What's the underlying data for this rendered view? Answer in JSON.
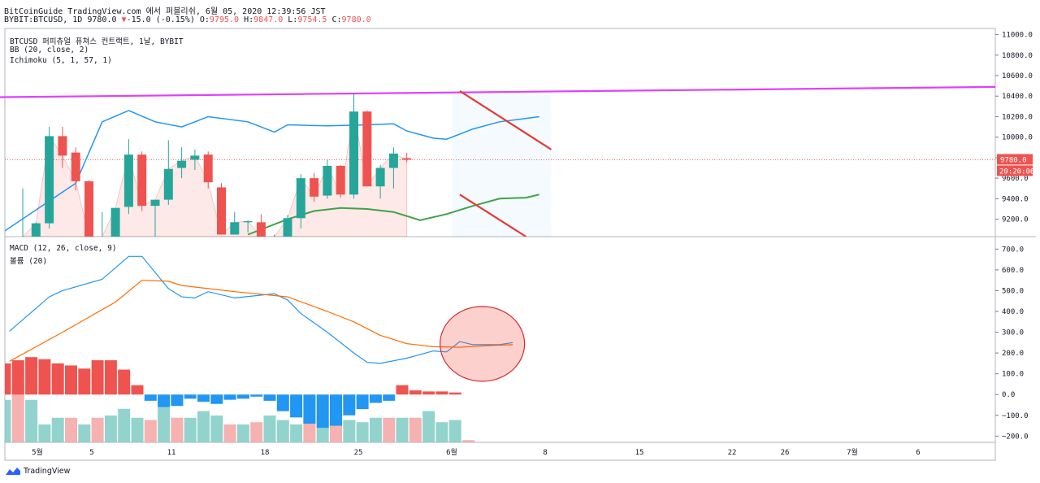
{
  "header": {
    "line1": "BitCoinGuide TradingView.com 에서 퍼블리쉬, 6월 05, 2020 12:39:56 JST",
    "symbol": "BYBIT:BTCUSD, 1D",
    "last": "9780.0",
    "change_arrow": "▼",
    "change": "-15.0 (-0.15%)",
    "o_label": "O:",
    "o": "9795.0",
    "h_label": "H:",
    "h": "9847.0",
    "l_label": "L:",
    "l": "9754.5",
    "c_label": "C:",
    "c": "9780.0"
  },
  "pane_labels": {
    "title": "BTCUSD 퍼피츄얼 퓨쳐스 컨트랙트, 1날, BYBIT",
    "bb": "BB (20, close, 2)",
    "ichimoku": "Ichimoku (5, 1, 57, 1)",
    "macd": "MACD (12, 26, close, 9)",
    "volume": "볼륨 (20)"
  },
  "brand": "TradingView",
  "price_tag": "9780.0",
  "time_tag": "20:20:06",
  "chart_data": [
    {
      "type": "candlestick",
      "pane": "price",
      "ylim": [
        9030,
        11060
      ],
      "yticks": [
        "9200.0",
        "9400.0",
        "9600.0",
        "9800.0",
        "10000.0",
        "10200.0",
        "10400.0",
        "10600.0",
        "10800.0",
        "11000.0"
      ],
      "x_ticks": [
        "5월",
        "5",
        "11",
        "18",
        "25",
        "6월",
        "8",
        "15",
        "22",
        "26",
        "7월",
        "6"
      ],
      "candles": [
        {
          "o": 9030,
          "h": 9500,
          "l": 9030,
          "c": 9030
        },
        {
          "o": 9030,
          "h": 9170,
          "l": 9030,
          "c": 9160
        },
        {
          "o": 9160,
          "h": 10100,
          "l": 9110,
          "c": 10010
        },
        {
          "o": 10010,
          "h": 10100,
          "l": 9700,
          "c": 9820
        },
        {
          "o": 9850,
          "h": 9900,
          "l": 9480,
          "c": 9570
        },
        {
          "o": 9570,
          "h": 9580,
          "l": 9030,
          "c": 9030
        },
        {
          "o": 9030,
          "h": 9270,
          "l": 9030,
          "c": 9030
        },
        {
          "o": 9030,
          "h": 9300,
          "l": 9030,
          "c": 9310
        },
        {
          "o": 9320,
          "h": 9980,
          "l": 9250,
          "c": 9830
        },
        {
          "o": 9830,
          "h": 9860,
          "l": 9280,
          "c": 9330
        },
        {
          "o": 9330,
          "h": 9370,
          "l": 9030,
          "c": 9390
        },
        {
          "o": 9390,
          "h": 9970,
          "l": 9340,
          "c": 9690
        },
        {
          "o": 9700,
          "h": 9900,
          "l": 9600,
          "c": 9770
        },
        {
          "o": 9780,
          "h": 9880,
          "l": 9680,
          "c": 9820
        },
        {
          "o": 9830,
          "h": 9860,
          "l": 9500,
          "c": 9560
        },
        {
          "o": 9510,
          "h": 9550,
          "l": 9050,
          "c": 9050
        },
        {
          "o": 9050,
          "h": 9270,
          "l": 9050,
          "c": 9170
        },
        {
          "o": 9170,
          "h": 9190,
          "l": 9070,
          "c": 9180
        },
        {
          "o": 9170,
          "h": 9250,
          "l": 9030,
          "c": 9030
        },
        {
          "o": 9030,
          "h": 9050,
          "l": 9030,
          "c": 9030
        },
        {
          "o": 9030,
          "h": 9240,
          "l": 9030,
          "c": 9210
        },
        {
          "o": 9210,
          "h": 9640,
          "l": 9110,
          "c": 9600
        },
        {
          "o": 9600,
          "h": 9650,
          "l": 9370,
          "c": 9420
        },
        {
          "o": 9430,
          "h": 9780,
          "l": 9400,
          "c": 9720
        },
        {
          "o": 9720,
          "h": 9730,
          "l": 9410,
          "c": 9440
        },
        {
          "o": 9440,
          "h": 10430,
          "l": 9400,
          "c": 10250
        },
        {
          "o": 10250,
          "h": 10260,
          "l": 9520,
          "c": 9520
        },
        {
          "o": 9520,
          "h": 9730,
          "l": 9400,
          "c": 9700
        },
        {
          "o": 9700,
          "h": 9900,
          "l": 9500,
          "c": 9840
        },
        {
          "o": 9795,
          "h": 9847,
          "l": 9754.5,
          "c": 9780
        }
      ],
      "bb_upper": [
        [
          -2,
          9030
        ],
        [
          4,
          9550
        ],
        [
          6,
          10150
        ],
        [
          8,
          10260
        ],
        [
          10,
          10150
        ],
        [
          12,
          10100
        ],
        [
          14,
          10200
        ],
        [
          17,
          10150
        ],
        [
          19,
          10050
        ],
        [
          20,
          10120
        ],
        [
          23,
          10110
        ],
        [
          26,
          10120
        ],
        [
          28,
          10130
        ],
        [
          29,
          10060
        ],
        [
          31,
          9990
        ],
        [
          32,
          9980
        ],
        [
          34,
          10080
        ],
        [
          36,
          10150
        ],
        [
          39,
          10200
        ]
      ],
      "ichimoku_base": [
        [
          17,
          9050
        ],
        [
          20,
          9200
        ],
        [
          22,
          9280
        ],
        [
          24,
          9310
        ],
        [
          26,
          9300
        ],
        [
          28,
          9270
        ],
        [
          30,
          9190
        ],
        [
          32,
          9250
        ],
        [
          34,
          9330
        ],
        [
          36,
          9400
        ],
        [
          38,
          9410
        ],
        [
          39,
          9440
        ]
      ],
      "line_magenta": {
        "from": [
          0,
          10390
        ],
        "to": [
          1280,
          10490
        ]
      },
      "channel_upper": {
        "from": [
          33,
          10450
        ],
        "to": [
          39.9,
          9880
        ]
      },
      "channel_lower": {
        "from": [
          33,
          9440
        ],
        "to": [
          38,
          9030
        ]
      },
      "current_price": 9780
    },
    {
      "type": "line",
      "pane": "macd",
      "ylim": [
        -230,
        760
      ],
      "yticks": [
        "700.0",
        "600.0",
        "500.0",
        "400.0",
        "300.0",
        "200.0",
        "100.0",
        "0.0",
        "-100.0",
        "-200.0"
      ],
      "macd": [
        [
          0,
          305
        ],
        [
          3,
          470
        ],
        [
          4,
          500
        ],
        [
          7,
          555
        ],
        [
          9,
          665
        ],
        [
          10,
          665
        ],
        [
          12,
          510
        ],
        [
          13,
          470
        ],
        [
          14,
          465
        ],
        [
          15,
          495
        ],
        [
          17,
          465
        ],
        [
          20,
          485
        ],
        [
          21,
          455
        ],
        [
          22,
          390
        ],
        [
          24,
          300
        ],
        [
          26,
          200
        ],
        [
          27,
          155
        ],
        [
          28,
          150
        ],
        [
          30,
          175
        ],
        [
          32,
          210
        ],
        [
          33,
          205
        ],
        [
          34,
          255
        ],
        [
          35,
          240
        ],
        [
          37,
          240
        ],
        [
          38,
          250
        ]
      ],
      "signal": [
        [
          0,
          160
        ],
        [
          4,
          300
        ],
        [
          8,
          445
        ],
        [
          10,
          550
        ],
        [
          12,
          545
        ],
        [
          13,
          525
        ],
        [
          17,
          495
        ],
        [
          21,
          470
        ],
        [
          24,
          400
        ],
        [
          26,
          350
        ],
        [
          28,
          285
        ],
        [
          30,
          245
        ],
        [
          32,
          230
        ],
        [
          34,
          228
        ],
        [
          36,
          235
        ],
        [
          38,
          240
        ]
      ],
      "histogram": [
        150,
        165,
        180,
        170,
        150,
        140,
        125,
        165,
        165,
        120,
        45,
        -30,
        -60,
        -55,
        -20,
        -35,
        -45,
        -25,
        -20,
        -10,
        -30,
        -80,
        -110,
        -140,
        -160,
        -150,
        -100,
        -70,
        -40,
        -30,
        45,
        20,
        15,
        15,
        10
      ],
      "volume": [
        95,
        135,
        95,
        40,
        55,
        55,
        40,
        55,
        60,
        75,
        55,
        50,
        100,
        55,
        55,
        70,
        60,
        40,
        40,
        45,
        60,
        50,
        40,
        50,
        50,
        40,
        50,
        45,
        55,
        55,
        55,
        55,
        70,
        45,
        50,
        5
      ],
      "highlight": {
        "x": 35.7,
        "y": 240
      }
    }
  ],
  "colors": {
    "up": "#26a69a",
    "down": "#ef5350",
    "bb": "#2196f3",
    "baseline": "#43a047",
    "trend_magenta": "#e040fb",
    "channel": "#e53935",
    "macd": "#2196f3",
    "signal": "#ff6d00",
    "hist_pos": "#ef5350",
    "hist_neg": "#2196f3",
    "vol_up": "#80cbc4",
    "vol_down": "#f4a3a3",
    "highlight_fill": "rgba(244,67,54,0.25)",
    "highlight_stroke": "#d32f2f"
  }
}
